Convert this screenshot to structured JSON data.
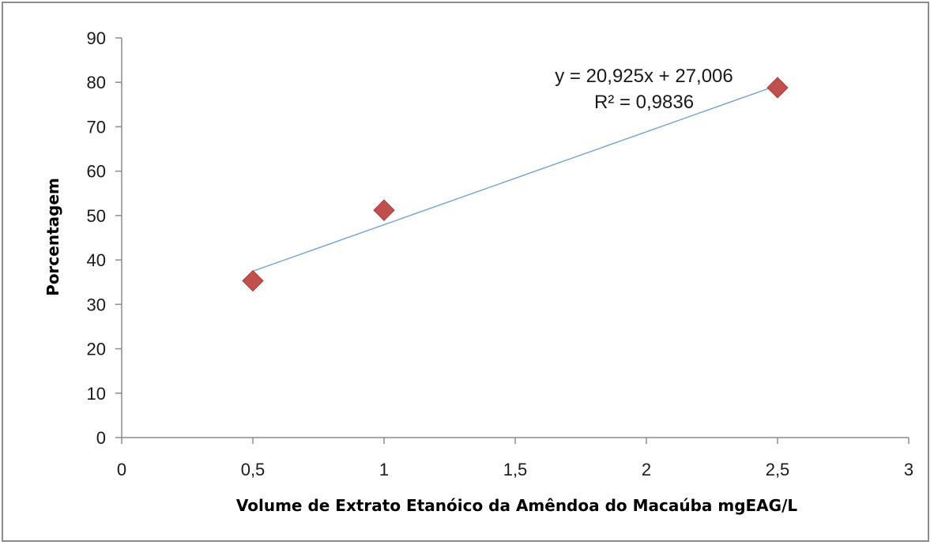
{
  "chart_data": {
    "type": "scatter",
    "title": "",
    "xlabel": "Volume de Extrato Etanóico da Amêndoa do Macaúba mgEAG/L",
    "ylabel": "Porcentagem",
    "xlim": [
      0,
      3
    ],
    "ylim": [
      0,
      90
    ],
    "x_ticks": [
      0,
      0.5,
      1,
      1.5,
      2,
      2.5,
      3
    ],
    "x_tick_labels": [
      "0",
      "0,5",
      "1",
      "1,5",
      "2",
      "2,5",
      "3"
    ],
    "y_ticks": [
      0,
      10,
      20,
      30,
      40,
      50,
      60,
      70,
      80,
      90
    ],
    "y_tick_labels": [
      "0",
      "10",
      "20",
      "30",
      "40",
      "50",
      "60",
      "70",
      "80",
      "90"
    ],
    "grid": false,
    "series": [
      {
        "x": [
          0.5,
          1,
          2.5
        ],
        "y": [
          35.3,
          51.2,
          78.8
        ],
        "marker": "diamond",
        "color": "#c0504d"
      }
    ],
    "trendline": {
      "type": "linear",
      "slope": 20.925,
      "intercept": 27.006,
      "x_range": [
        0.5,
        2.5
      ],
      "color": "#7aa5d6",
      "equation_label": "y = 20,925x + 27,006",
      "r2_label": "R² = 0,9836"
    },
    "axis_color": "#8c8c8c"
  }
}
